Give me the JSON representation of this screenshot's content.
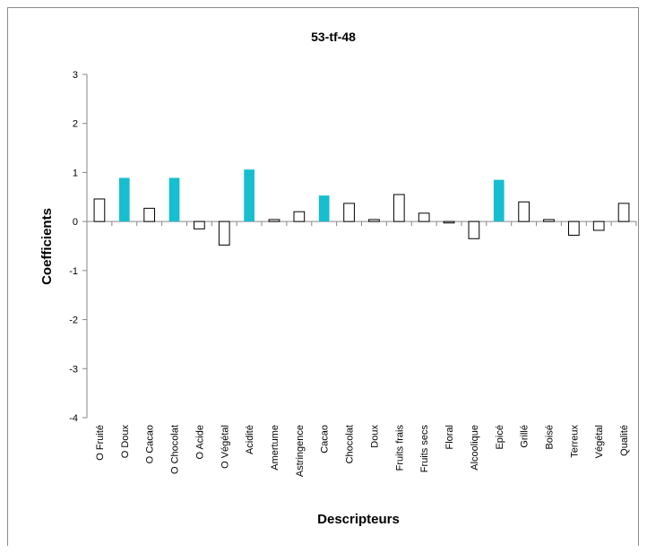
{
  "chart_data": {
    "type": "bar",
    "title": "53-tf-48",
    "xlabel": "Descripteurs",
    "ylabel": "Coefficients",
    "ylim": [
      -4,
      3
    ],
    "yticks": [
      3,
      2,
      1,
      0,
      -1,
      -2,
      -3,
      -4
    ],
    "grid": false,
    "legend": "none",
    "categories": [
      "O Fruité",
      "O Doux",
      "O Cacao",
      "O Chocolat",
      "O Acide",
      "O Végétal",
      "Acidité",
      "Amertume",
      "Astringence",
      "Cacao",
      "Chocolat",
      "Doux",
      "Fruits frais",
      "Fruits secs",
      "Floral",
      "Alcoolique",
      "Epicé",
      "Grillé",
      "Boisé",
      "Terreux",
      "Végétal",
      "Qualité"
    ],
    "values": [
      0.46,
      0.89,
      0.27,
      0.89,
      -0.15,
      -0.48,
      1.06,
      0.04,
      0.2,
      0.53,
      0.37,
      0.04,
      0.55,
      0.17,
      -0.03,
      -0.35,
      0.85,
      0.4,
      0.04,
      -0.28,
      -0.18,
      0.37
    ],
    "highlighted": [
      false,
      true,
      false,
      true,
      false,
      false,
      true,
      false,
      false,
      true,
      false,
      false,
      false,
      false,
      false,
      false,
      true,
      false,
      false,
      false,
      false,
      false
    ],
    "colors": {
      "highlight": "#17becf",
      "normal": "#ffffff",
      "outline": "#000000",
      "axis": "#868686"
    }
  }
}
